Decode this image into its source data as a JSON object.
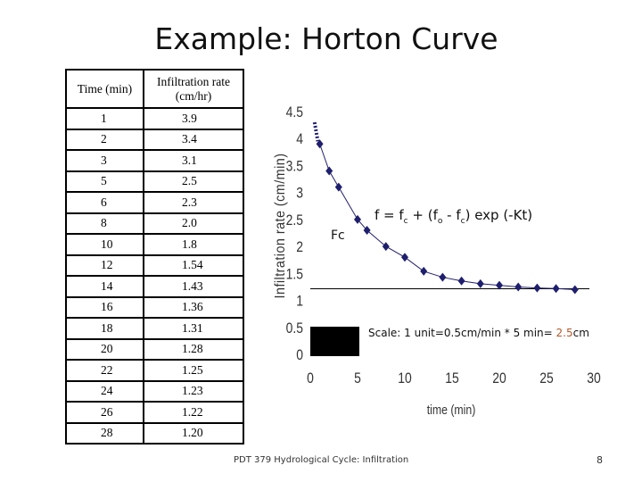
{
  "slide": {
    "title": "Example: Horton Curve",
    "footer": "PDT 379 Hydrological Cycle: Infiltration",
    "page_number": "8"
  },
  "table": {
    "headers": [
      "Time (min)",
      "Infiltration rate (cm/hr)"
    ],
    "rows": [
      [
        "1",
        "3.9"
      ],
      [
        "2",
        "3.4"
      ],
      [
        "3",
        "3.1"
      ],
      [
        "5",
        "2.5"
      ],
      [
        "6",
        "2.3"
      ],
      [
        "8",
        "2.0"
      ],
      [
        "10",
        "1.8"
      ],
      [
        "12",
        "1.54"
      ],
      [
        "14",
        "1.43"
      ],
      [
        "16",
        "1.36"
      ],
      [
        "18",
        "1.31"
      ],
      [
        "20",
        "1.28"
      ],
      [
        "22",
        "1.25"
      ],
      [
        "24",
        "1.23"
      ],
      [
        "26",
        "1.22"
      ],
      [
        "28",
        "1.20"
      ]
    ]
  },
  "annotations": {
    "equation": {
      "prefix": "f  =  f",
      "sub1": "c",
      "mid1": " + (f",
      "sub2": "o",
      "mid2": " - f",
      "sub3": "c",
      "suffix": ") exp (-Kt)"
    },
    "fc_label": "Fc",
    "scale_text": "Scale: 1 unit=0.5cm/min * 5 min= ",
    "scale_value": "2.5",
    "scale_unit": "cm",
    "accent_color": "#b25a2a"
  },
  "chart_data": {
    "type": "line",
    "xlabel": "time (min)",
    "ylabel": "Infiltration rate (cm/min)",
    "xlim": [
      0,
      30
    ],
    "ylim": [
      0,
      4.5
    ],
    "x_ticks": [
      "0",
      "5",
      "10",
      "15",
      "20",
      "25",
      "30"
    ],
    "y_ticks": [
      "0",
      "0.5",
      "1",
      "1.5",
      "2",
      "2.5",
      "3",
      "3.5",
      "4",
      "4.5"
    ],
    "grid": false,
    "series": [
      {
        "x": [
          1,
          2,
          3,
          5,
          6,
          8,
          10,
          12,
          14,
          16,
          18,
          20,
          22,
          24,
          26,
          28
        ],
        "y": [
          3.9,
          3.4,
          3.1,
          2.5,
          2.3,
          2.0,
          1.8,
          1.54,
          1.43,
          1.36,
          1.31,
          1.28,
          1.25,
          1.23,
          1.22,
          1.2
        ],
        "color": "#1f1f6e",
        "marker": "diamond"
      }
    ],
    "fc_line_value": 1.2,
    "extrapolation_dotted": {
      "x": [
        0.45,
        0.8
      ],
      "y": [
        4.3,
        3.95
      ]
    }
  }
}
